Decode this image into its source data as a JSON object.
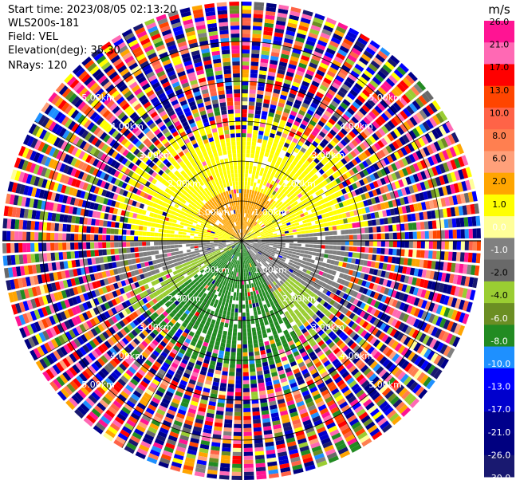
{
  "header": {
    "start_time": "Start time: 2023/08/05 02:13:20",
    "site": "WLS200s-181",
    "field": "Field: VEL",
    "elevation": "Elevation(deg): 35.30",
    "nrays": "NRays: 120"
  },
  "chart_data": {
    "type": "heatmap",
    "subtype": "polar-ppi",
    "field": "VEL",
    "nrays": 120,
    "range_rings_km": [
      1.0,
      2.0,
      3.0,
      4.0,
      5.0
    ],
    "range_ring_labels": [
      "1.00km",
      "2.00km",
      "3.00km",
      "4.00km",
      "5.00km"
    ],
    "max_range_km": 6.0,
    "colorbar": {
      "unit": "m/s",
      "tick_labels": [
        "26.0",
        "21.0",
        "17.0",
        "13.0",
        "10.0",
        "8.0",
        "6.0",
        "2.0",
        "1.0",
        "0.0",
        "-1.0",
        "-2.0",
        "-4.0",
        "-6.0",
        "-8.0",
        "-10.0",
        "-13.0",
        "-17.0",
        "-21.0",
        "-26.0",
        "-30.0"
      ],
      "bins": [
        {
          "lo": 26,
          "hi": 30,
          "color": "#ff1493"
        },
        {
          "lo": 21,
          "hi": 26,
          "color": "#ff69b4"
        },
        {
          "lo": 17,
          "hi": 21,
          "color": "#ff0000"
        },
        {
          "lo": 13,
          "hi": 17,
          "color": "#ff4500"
        },
        {
          "lo": 10,
          "hi": 13,
          "color": "#ff6347"
        },
        {
          "lo": 8,
          "hi": 10,
          "color": "#ff7f50"
        },
        {
          "lo": 6,
          "hi": 8,
          "color": "#ffa07a"
        },
        {
          "lo": 2,
          "hi": 6,
          "color": "#ffa500"
        },
        {
          "lo": 1,
          "hi": 2,
          "color": "#ffff00"
        },
        {
          "lo": 0,
          "hi": 1,
          "color": "#ffff99"
        },
        {
          "lo": -1,
          "hi": 0,
          "color": "#808080"
        },
        {
          "lo": -2,
          "hi": -1,
          "color": "#696969"
        },
        {
          "lo": -4,
          "hi": -2,
          "color": "#9acd32"
        },
        {
          "lo": -6,
          "hi": -4,
          "color": "#6b8e23"
        },
        {
          "lo": -8,
          "hi": -6,
          "color": "#228b22"
        },
        {
          "lo": -10,
          "hi": -8,
          "color": "#1e90ff"
        },
        {
          "lo": -13,
          "hi": -10,
          "color": "#0000ff"
        },
        {
          "lo": -17,
          "hi": -13,
          "color": "#0000cd"
        },
        {
          "lo": -21,
          "hi": -17,
          "color": "#00008b"
        },
        {
          "lo": -26,
          "hi": -21,
          "color": "#000080"
        },
        {
          "lo": -30,
          "hi": -26,
          "color": "#191970"
        }
      ]
    },
    "pattern": {
      "positive_sector": "north / west (yellow 1–2 m/s, orange 2–6 m/s)",
      "near_zero_sector": "east (gray -1–0 m/s)",
      "negative_sector": "south (green -6–-8 m/s, -2–-4 m/s)",
      "noise_beyond_km": 3.0
    }
  }
}
